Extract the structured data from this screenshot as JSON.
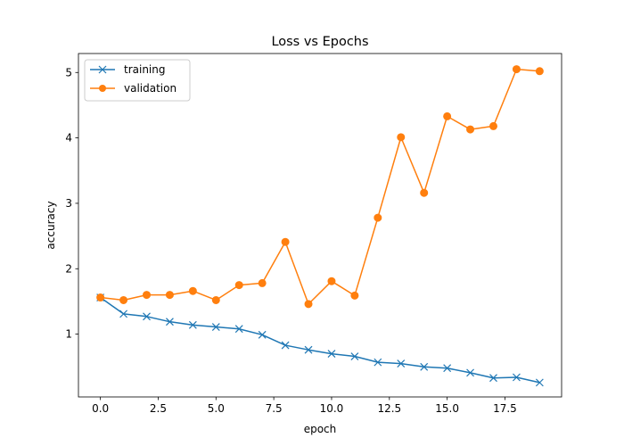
{
  "chart_data": {
    "type": "line",
    "title": "Loss vs Epochs",
    "xlabel": "epoch",
    "ylabel": "accuracy",
    "xlim": [
      -0.95,
      19.95
    ],
    "ylim": [
      0.04,
      5.29
    ],
    "xticks": [
      0.0,
      2.5,
      5.0,
      7.5,
      10.0,
      12.5,
      15.0,
      17.5
    ],
    "xtick_labels": [
      "0.0",
      "2.5",
      "5.0",
      "7.5",
      "10.0",
      "12.5",
      "15.0",
      "17.5"
    ],
    "yticks": [
      1,
      2,
      3,
      4,
      5
    ],
    "ytick_labels": [
      "1",
      "2",
      "3",
      "4",
      "5"
    ],
    "grid": false,
    "legend_position": "top-left",
    "x": [
      0,
      1,
      2,
      3,
      4,
      5,
      6,
      7,
      8,
      9,
      10,
      11,
      12,
      13,
      14,
      15,
      16,
      17,
      18,
      19
    ],
    "series": [
      {
        "name": "training",
        "color": "#1f77b4",
        "marker": "x",
        "values": [
          1.56,
          1.31,
          1.27,
          1.19,
          1.14,
          1.11,
          1.08,
          0.99,
          0.83,
          0.76,
          0.7,
          0.66,
          0.57,
          0.55,
          0.5,
          0.48,
          0.41,
          0.33,
          0.34,
          0.26
        ]
      },
      {
        "name": "validation",
        "color": "#ff7f0e",
        "marker": "o",
        "values": [
          1.56,
          1.52,
          1.6,
          1.6,
          1.66,
          1.52,
          1.75,
          1.78,
          2.41,
          1.46,
          1.81,
          1.59,
          2.78,
          4.01,
          3.16,
          4.33,
          4.13,
          4.18,
          5.05,
          5.02
        ]
      }
    ]
  }
}
